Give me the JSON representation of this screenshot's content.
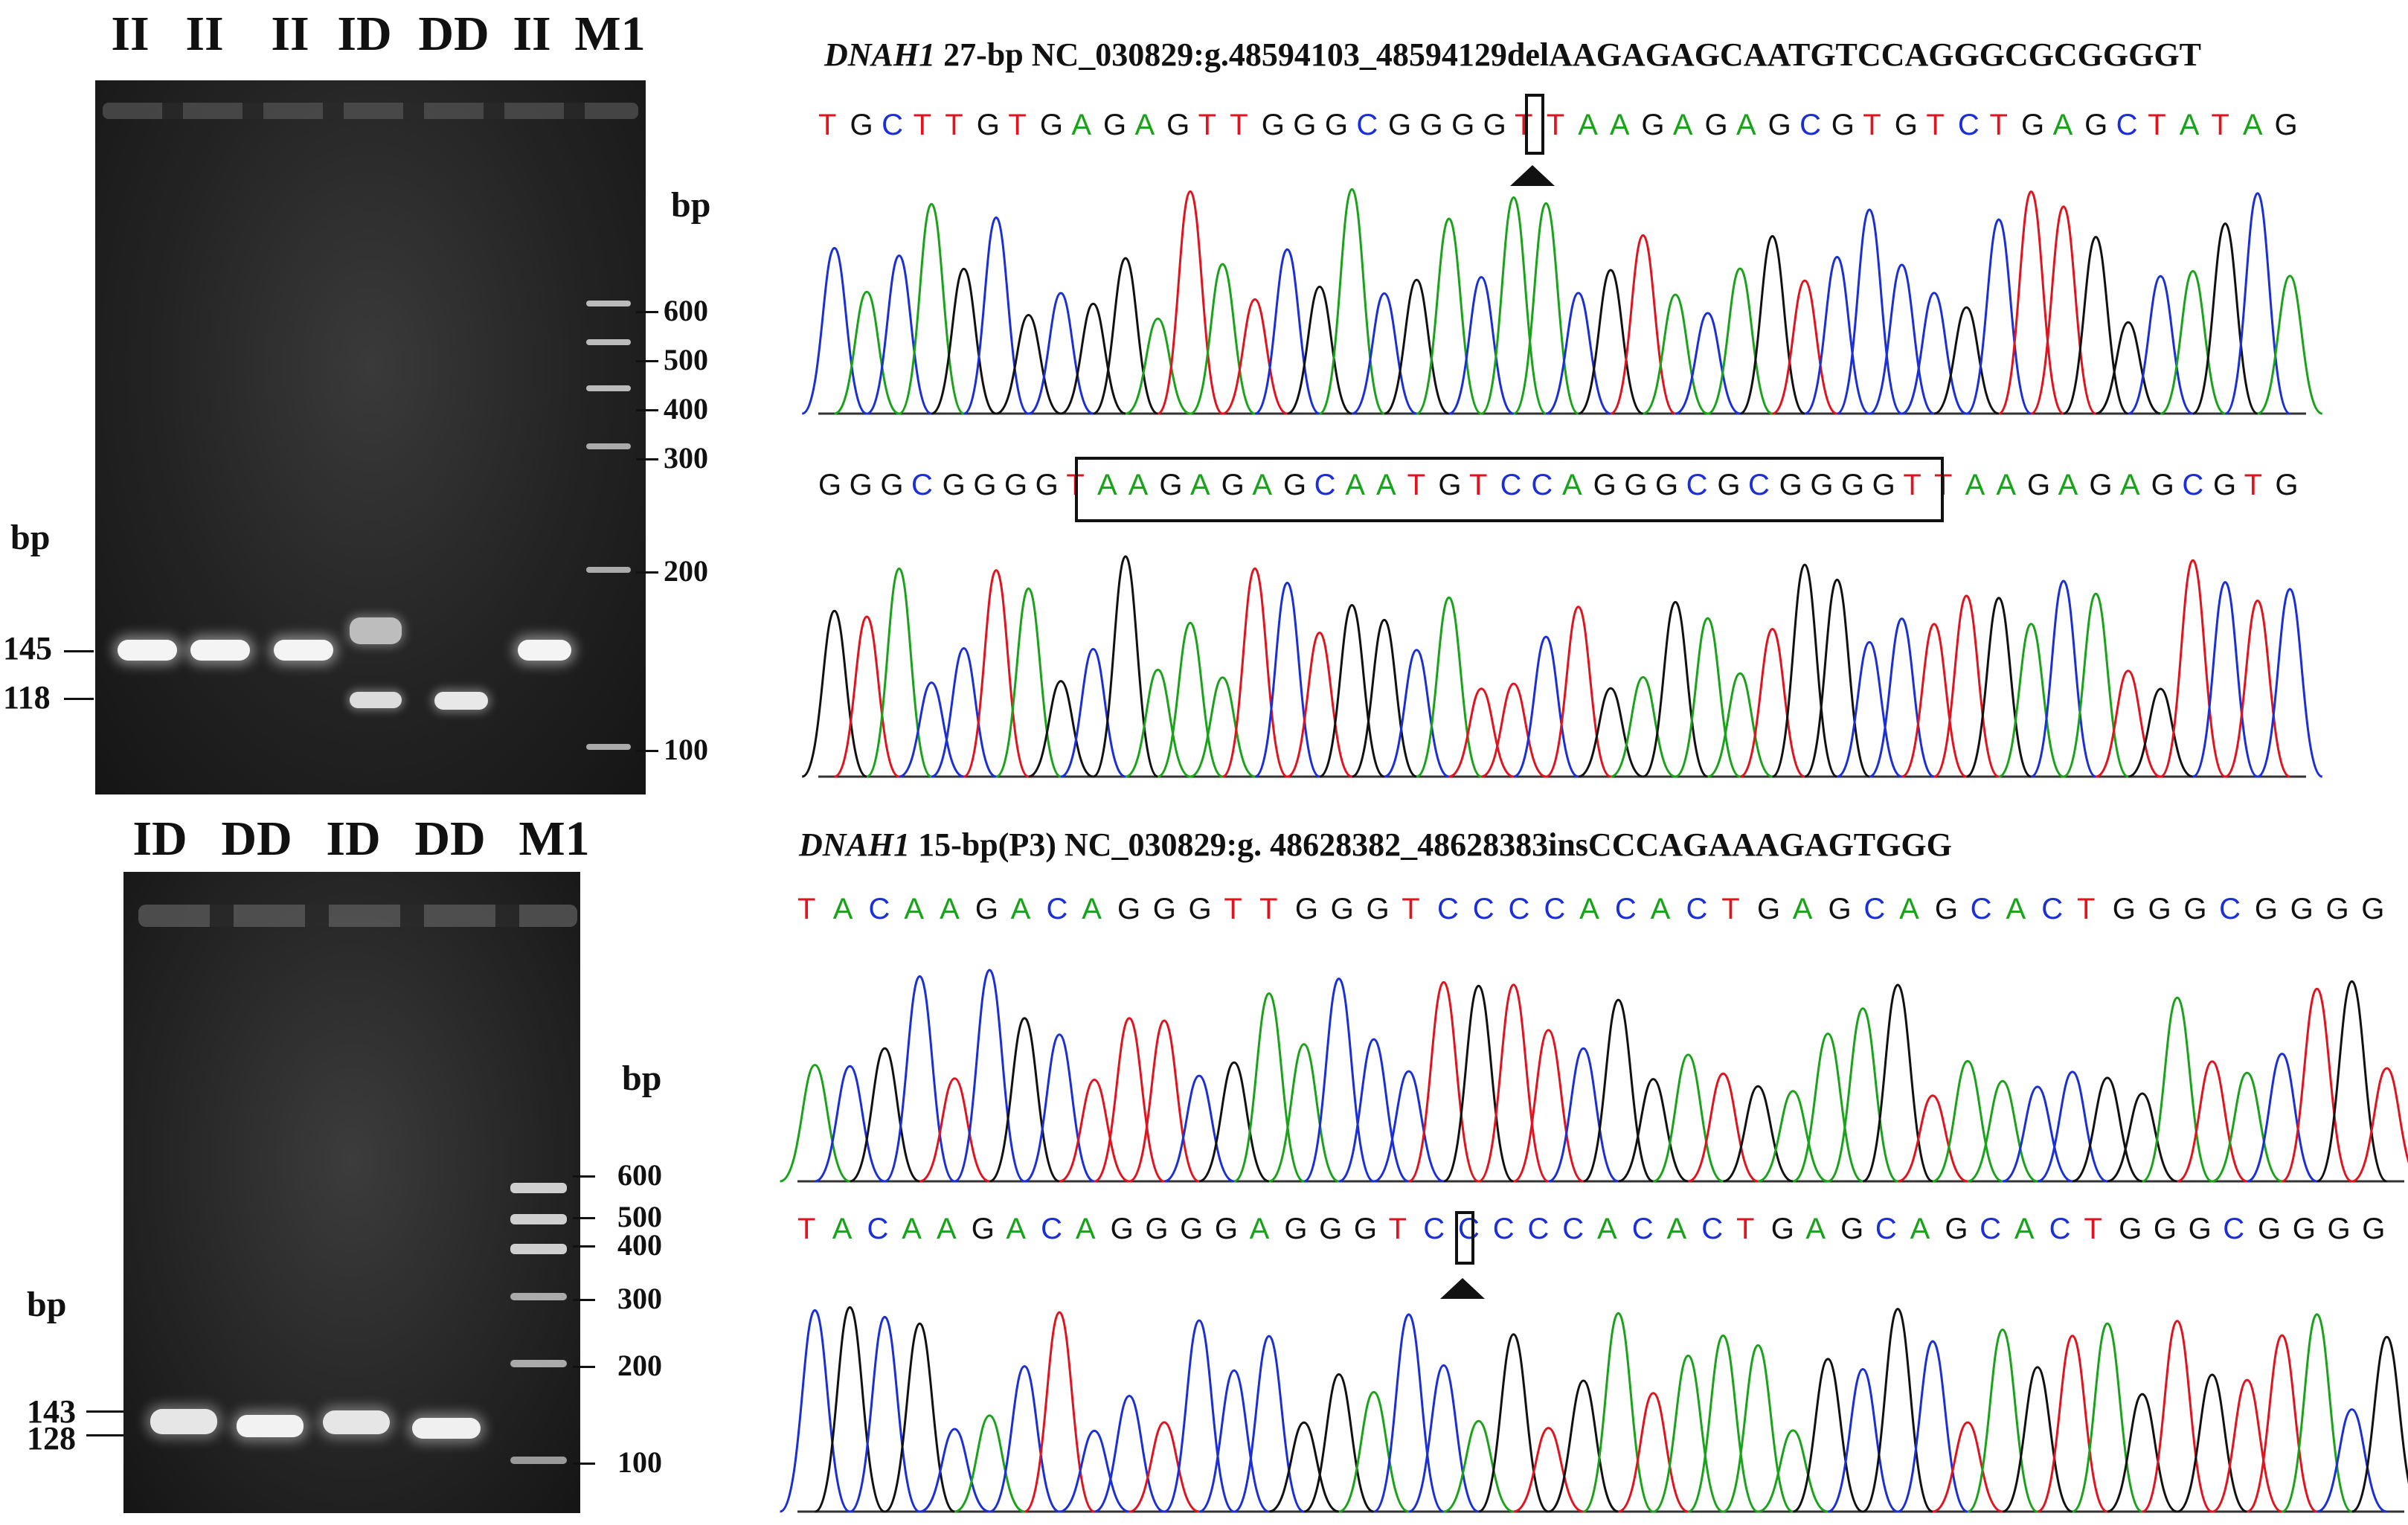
{
  "gel_top": {
    "lanes": [
      "II",
      "II",
      "II",
      "ID",
      "DD",
      "II",
      "M1"
    ],
    "unit_right": "bp",
    "unit_left": "bp",
    "size_labels": [
      "145",
      "118"
    ],
    "marker_labels": [
      "600",
      "500",
      "400",
      "300",
      "200",
      "100"
    ]
  },
  "gel_bottom": {
    "lanes": [
      "ID",
      "DD",
      "ID",
      "DD",
      "M1"
    ],
    "unit_right": "bp",
    "unit_left": "bp",
    "size_labels": [
      "143",
      "128"
    ],
    "marker_labels": [
      "600",
      "500",
      "400",
      "300",
      "200",
      "100"
    ]
  },
  "seq_top": {
    "gene": "DNAH1",
    "title_rest": " 27-bp NC_030829:g.48594103_48594129delAAGAGAGCAATGTCCAGGGCGCGGGGT",
    "seq1": "TGCTTGTGAGAGTTGGGCGGGGTTAAGAGAGCGTGTCTGAGCTATAG",
    "seq2": "GGGCGGGGTAAGAGAGCAATGTCCAGGGCGCGGGGTTAAGAGAGCGTG"
  },
  "seq_bottom": {
    "gene": "DNAH1",
    "title_rest": " 15-bp(P3) NC_030829:g. 48628382_48628383insCCCAGAAAGAGTGGG",
    "seq1": "TACAAGACAGGGTTGGGTCCCCACACTGAGCAGCACTGGGCGGGG",
    "seq2": "TACAAGACAGGGGAGGGTCCCCCACACTGAGCAGCACTGGGCGGGG"
  },
  "colors": {
    "A": "#1aa31a",
    "C": "#1a2fd6",
    "G": "#111111",
    "T": "#e0141e"
  }
}
